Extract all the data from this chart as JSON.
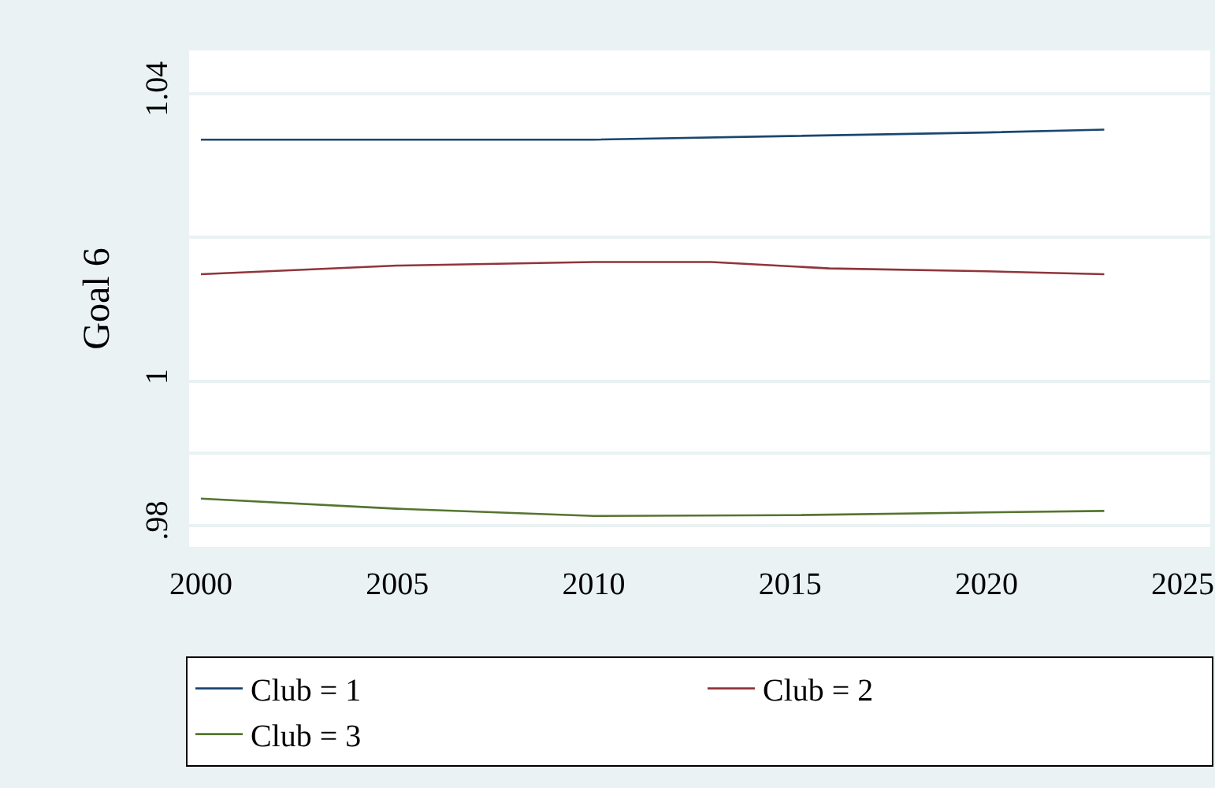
{
  "chart_data": {
    "type": "line",
    "ylabel": "Goal 6",
    "xlim": [
      1999.7,
      2025.7
    ],
    "xticks": [
      2000,
      2005,
      2010,
      2015,
      2020,
      2025
    ],
    "ylim": [
      0.977,
      1.046
    ],
    "yticks": [
      {
        "value": 0.98,
        "label": ".98"
      },
      {
        "value": 0.99,
        "label": null
      },
      {
        "value": 1,
        "label": "1"
      },
      {
        "value": 1.02,
        "label": null
      },
      {
        "value": 1.04,
        "label": "1.04"
      }
    ],
    "grid": "y",
    "legend": "bottom",
    "marker": "none",
    "line_style": "solid",
    "series": [
      {
        "name": "Club = 1",
        "color": "#1a476f",
        "x": [
          2000,
          2005,
          2010,
          2015,
          2020,
          2023
        ],
        "values": [
          1.0336,
          1.0336,
          1.0336,
          1.0341,
          1.0346,
          1.035
        ]
      },
      {
        "name": "Club = 2",
        "color": "#90353b",
        "x": [
          2000,
          2005,
          2010,
          2013,
          2016,
          2020,
          2023
        ],
        "values": [
          1.0149,
          1.0161,
          1.0166,
          1.0166,
          1.0157,
          1.0153,
          1.0149
        ]
      },
      {
        "name": "Club = 3",
        "color": "#55752f",
        "x": [
          2000,
          2005,
          2010,
          2015,
          2020,
          2023
        ],
        "values": [
          0.9837,
          0.9823,
          0.9813,
          0.9814,
          0.9818,
          0.982
        ]
      }
    ]
  }
}
